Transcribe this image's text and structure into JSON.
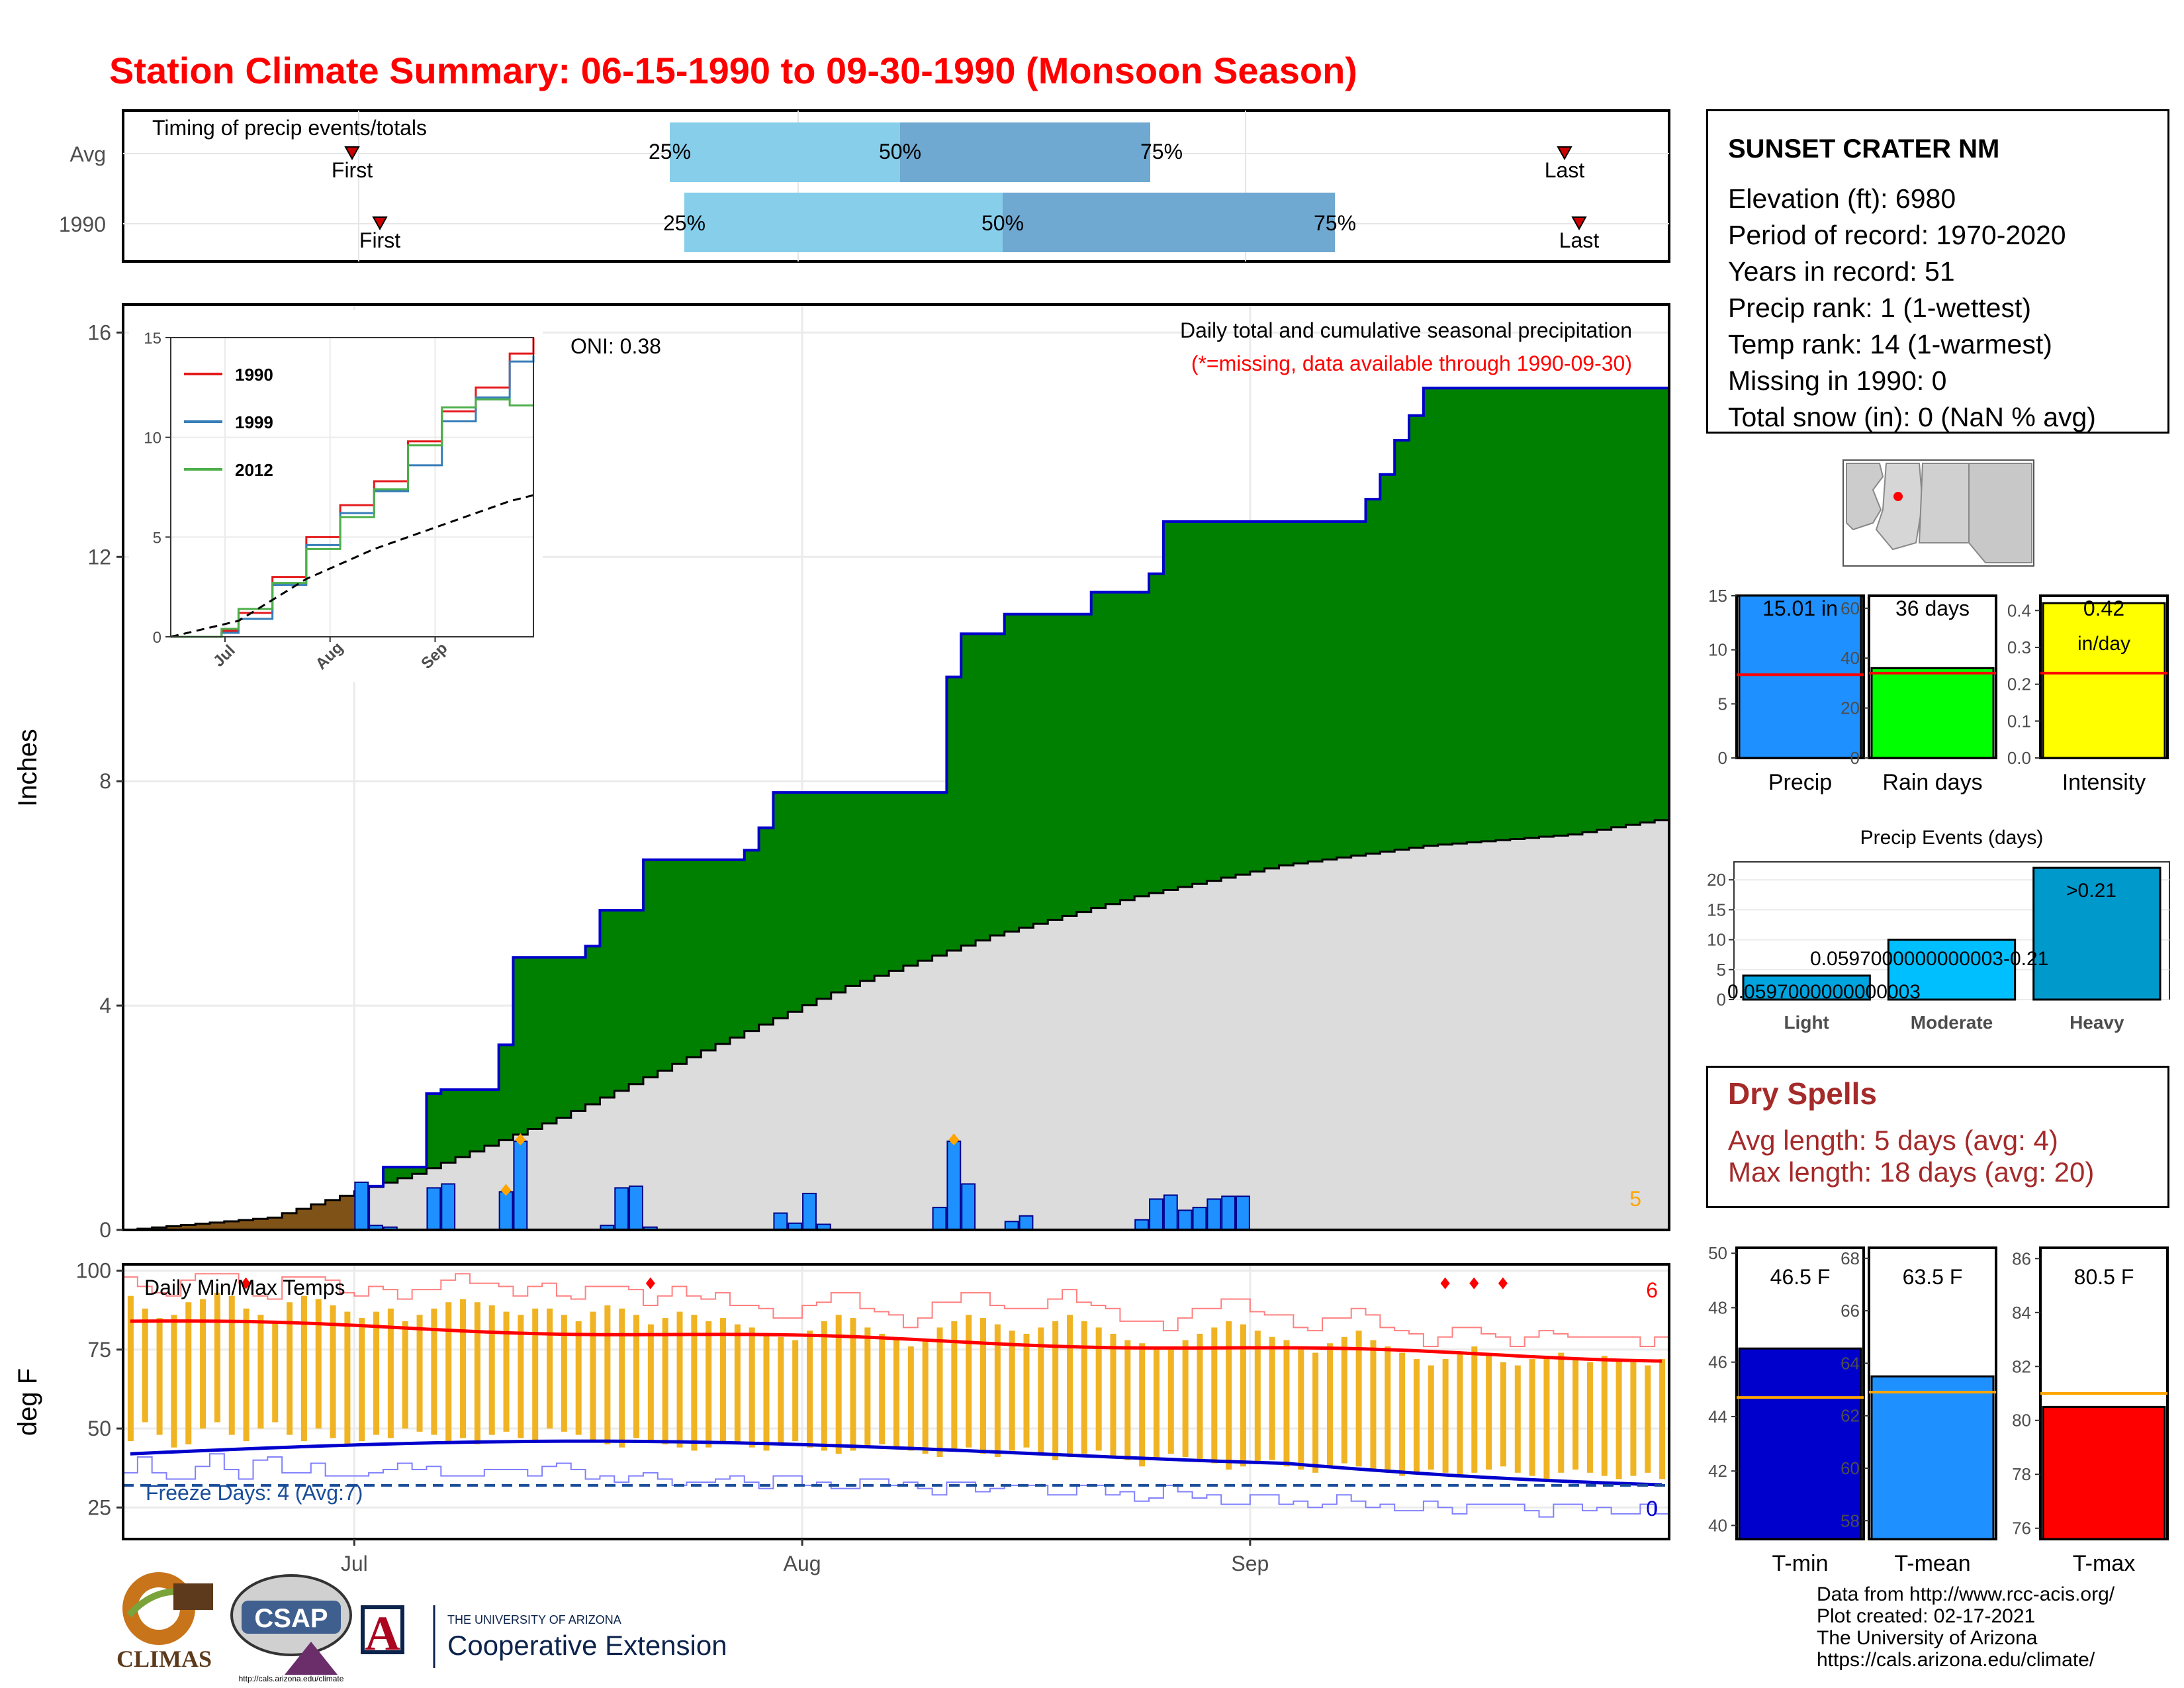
{
  "title": "Station Climate Summary: 06-15-1990 to 09-30-1990 (Monsoon Season)",
  "colors": {
    "title": "#ff0000",
    "cumulative_fill": "#008000",
    "normal_fill": "#dcdcdc",
    "daily_bar": "#1e90ff",
    "outline": "#0000cd",
    "tmax": "#ff0000",
    "tmin": "#0000cd",
    "temp_bar": "#f0b323",
    "precip_bar": "#1e90ff",
    "raindays_bar": "#00ff00",
    "intensity_bar": "#ffff00",
    "tmean_bar": "#1e90ff",
    "events_bar": "#0099cc",
    "dry_spells": "#a52a2a"
  },
  "timing": {
    "title": "Timing of precip events/totals",
    "rows": [
      "Avg",
      "1990"
    ],
    "markers": {
      "first": "First",
      "last": "Last",
      "p25": "25%",
      "p50": "50%",
      "p75": "75%"
    }
  },
  "station": {
    "name": "SUNSET CRATER NM",
    "lines": [
      "Elevation (ft): 6980",
      "Period of record: 1970-2020",
      "Years in record: 51",
      "Precip rank: 1 (1-wettest)",
      "Temp rank: 14 (1-warmest)",
      "Missing in 1990: 0",
      "Total snow (in): 0 (NaN % avg)"
    ]
  },
  "precip_panel": {
    "oni": "ONI: 0.38",
    "note1": "Daily total and cumulative seasonal precipitation",
    "note2": "(*=missing, data available through 1990-09-30)",
    "ylabel": "Inches",
    "yticks": [
      "0",
      "4",
      "8",
      "12",
      "16"
    ],
    "count_label": "5"
  },
  "temp_panel": {
    "title": "Daily Min/Max Temps",
    "ylabel": "deg F",
    "yticks": [
      "25",
      "50",
      "75",
      "100"
    ],
    "freeze": "Freeze Days: 4 (Avg:7)",
    "max_count": "6",
    "min_count": "0"
  },
  "xticks": [
    "Jul",
    "Aug",
    "Sep"
  ],
  "inset": {
    "yticks": [
      "0",
      "5",
      "10",
      "15"
    ],
    "xticks": [
      "Jul",
      "Aug",
      "Sep"
    ],
    "legend": [
      "1990",
      "1999",
      "2012"
    ]
  },
  "bars": {
    "precip": {
      "label": "Precip",
      "value_label": "15.01 in",
      "yticks": [
        "0",
        "5",
        "10",
        "15"
      ]
    },
    "raindays": {
      "label": "Rain days",
      "value_label": "36 days",
      "yticks": [
        "0",
        "20",
        "40",
        "60"
      ]
    },
    "intensity": {
      "label": "Intensity",
      "value_label": "0.42",
      "value_unit": "in/day",
      "yticks": [
        "0.0",
        "0.1",
        "0.2",
        "0.3",
        "0.4"
      ]
    },
    "tmin": {
      "label": "T-min",
      "value_label": "46.5 F",
      "yticks": [
        "40",
        "42",
        "44",
        "46",
        "48",
        "50"
      ]
    },
    "tmean": {
      "label": "T-mean",
      "value_label": "63.5 F",
      "yticks": [
        "58",
        "60",
        "62",
        "64",
        "66",
        "68"
      ]
    },
    "tmax": {
      "label": "T-max",
      "value_label": "80.5 F",
      "yticks": [
        "76",
        "78",
        "80",
        "82",
        "84",
        "86"
      ]
    }
  },
  "events": {
    "title": "Precip Events (days)",
    "yticks": [
      "0",
      "5",
      "10",
      "15",
      "20"
    ],
    "categories": [
      "Light",
      "Moderate",
      "Heavy"
    ],
    "labels": [
      "0.0597000000000003",
      "0.0597000000000003-0.21",
      ">0.21"
    ]
  },
  "dry_spells": {
    "title": "Dry Spells",
    "avg": "Avg length: 5 days (avg: 4)",
    "max": "Max length: 18 days (avg: 20)"
  },
  "credits": [
    "Data from http://www.rcc-acis.org/",
    "Plot created: 02-17-2021",
    "The University of Arizona",
    "https://cals.arizona.edu/climate/"
  ],
  "logos": {
    "climas": "CLIMAS",
    "csap": "CSAP",
    "csap_url": "http://cals.arizona.edu/climate",
    "ua_line1": "THE UNIVERSITY OF ARIZONA",
    "ua_line2": "Cooperative Extension"
  },
  "chart_data": [
    {
      "type": "area",
      "title": "Daily total and cumulative seasonal precipitation",
      "ylabel": "Inches",
      "ylim": [
        0,
        16.5
      ],
      "x_start": "1990-06-15",
      "x_end": "1990-09-30",
      "series": [
        {
          "name": "cumulative",
          "x": [
            17,
            18,
            20,
            21,
            22,
            25,
            26,
            27,
            31,
            32,
            33,
            36,
            37,
            38,
            43,
            44,
            45,
            48,
            56,
            57,
            58,
            61,
            67,
            68,
            70,
            71,
            72,
            86,
            87,
            88,
            89,
            90,
            94,
            96,
            97,
            102,
            103,
            104,
            105,
            106,
            107
          ],
          "y": [
            0.78,
            1.12,
            1.12,
            2.43,
            2.5,
            2.5,
            3.3,
            4.86,
            4.86,
            5.06,
            5.7,
            6.6,
            6.6,
            6.6,
            6.77,
            7.17,
            7.8,
            7.8,
            7.8,
            9.86,
            10.63,
            10.98,
            11.37,
            11.37,
            11.37,
            11.7,
            12.63,
            13.03,
            13.47,
            14.08,
            14.52,
            15.01,
            15.01,
            15.01,
            15.01,
            15.01,
            15.01,
            15.01,
            15.01,
            15.01,
            15.01
          ]
        },
        {
          "name": "daily",
          "x": [
            16,
            17,
            18,
            21,
            22,
            26,
            27,
            33,
            34,
            35,
            36,
            45,
            46,
            47,
            48,
            56,
            57,
            58,
            61,
            62,
            70,
            71,
            72,
            73,
            74,
            75,
            76,
            77
          ],
          "y": [
            0.85,
            0.08,
            0.05,
            0.75,
            0.82,
            0.68,
            1.58,
            0.08,
            0.75,
            0.78,
            0.05,
            0.3,
            0.12,
            0.65,
            0.1,
            0.4,
            1.58,
            0.82,
            0.15,
            0.25,
            0.18,
            0.55,
            0.62,
            0.35,
            0.4,
            0.55,
            0.6,
            0.6
          ]
        },
        {
          "name": "normal",
          "x": [
            0,
            10,
            20,
            30,
            40,
            50,
            60,
            70,
            80,
            90,
            100,
            107
          ],
          "y": [
            0,
            0.22,
            1.0,
            2.0,
            3.2,
            4.35,
            5.25,
            5.95,
            6.5,
            6.85,
            7.05,
            7.35
          ]
        }
      ]
    },
    {
      "type": "line",
      "title": "",
      "ylim": [
        0,
        15
      ],
      "series": [
        {
          "name": "1990",
          "x": [
            0,
            15,
            20,
            30,
            40,
            50,
            60,
            70,
            80,
            90,
            100,
            107
          ],
          "y": [
            0,
            0.3,
            1.2,
            3.0,
            5.0,
            6.6,
            7.8,
            9.8,
            11.3,
            12.5,
            14.2,
            15.0
          ]
        },
        {
          "name": "1999",
          "x": [
            0,
            15,
            20,
            30,
            40,
            50,
            60,
            70,
            80,
            90,
            100,
            107
          ],
          "y": [
            0,
            0.2,
            0.9,
            2.6,
            4.6,
            6.2,
            7.3,
            8.6,
            10.8,
            12.0,
            13.8,
            14.1
          ]
        },
        {
          "name": "2012",
          "x": [
            0,
            15,
            20,
            30,
            40,
            50,
            60,
            70,
            80,
            90,
            100,
            107
          ],
          "y": [
            0,
            0.4,
            1.4,
            2.7,
            4.4,
            6.0,
            7.4,
            9.6,
            11.5,
            11.9,
            11.6,
            11.6
          ]
        },
        {
          "name": "",
          "x": [
            0,
            20,
            40,
            60,
            80,
            100,
            107
          ],
          "y": [
            0,
            0.8,
            2.9,
            4.4,
            5.6,
            6.8,
            7.1
          ]
        }
      ]
    },
    {
      "type": "bar",
      "title": "Daily Min/Max Temps",
      "ylabel": "deg F",
      "ylim": [
        15,
        102
      ],
      "series": [
        {
          "name": "tmax",
          "values": [
            92,
            88,
            85,
            86,
            90,
            91,
            93,
            92,
            88,
            86,
            84,
            90,
            92,
            91,
            89,
            87,
            85,
            87,
            88,
            84,
            86,
            88,
            90,
            91,
            90,
            89,
            87,
            86,
            88,
            88,
            86,
            84,
            87,
            89,
            88,
            86,
            83,
            85,
            87,
            86,
            84,
            85,
            83,
            82,
            80,
            79,
            78,
            81,
            84,
            86,
            85,
            82,
            80,
            78,
            76,
            78,
            82,
            84,
            86,
            85,
            83,
            81,
            80,
            82,
            84,
            86,
            84,
            82,
            80,
            78,
            77,
            76,
            75,
            78,
            80,
            82,
            84,
            83,
            81,
            79,
            78,
            76,
            74,
            77,
            79,
            81,
            78,
            76,
            74,
            72,
            70,
            72,
            74,
            76,
            73,
            71,
            70,
            72,
            73,
            74,
            72,
            71,
            73,
            72,
            71,
            70,
            72
          ]
        },
        {
          "name": "tmin",
          "values": [
            46,
            52,
            48,
            44,
            45,
            50,
            52,
            48,
            46,
            50,
            52,
            48,
            46,
            50,
            47,
            45,
            46,
            48,
            47,
            50,
            49,
            48,
            46,
            47,
            45,
            48,
            49,
            47,
            46,
            50,
            49,
            48,
            46,
            45,
            44,
            47,
            46,
            45,
            44,
            43,
            44,
            46,
            45,
            44,
            43,
            45,
            46,
            44,
            43,
            42,
            43,
            44,
            45,
            44,
            43,
            42,
            41,
            43,
            44,
            42,
            41,
            43,
            44,
            42,
            40,
            41,
            42,
            43,
            41,
            40,
            38,
            40,
            42,
            41,
            40,
            39,
            37,
            38,
            39,
            40,
            38,
            37,
            36,
            38,
            39,
            38,
            37,
            36,
            35,
            36,
            37,
            36,
            35,
            36,
            37,
            38,
            36,
            35,
            34,
            36,
            37,
            36,
            35,
            34,
            35,
            36,
            34
          ]
        }
      ]
    },
    {
      "type": "bar",
      "title": "Precip Events (days)",
      "categories": [
        "Light",
        "Moderate",
        "Heavy"
      ],
      "values": [
        4,
        10,
        22
      ],
      "ylim": [
        0,
        23
      ]
    },
    {
      "type": "bar",
      "title": "",
      "categories": [
        "Precip",
        "Rain days",
        "Intensity",
        "T-min",
        "T-mean",
        "T-max"
      ],
      "values": [
        15.01,
        36,
        0.42,
        46.5,
        63.5,
        80.5
      ],
      "averages": [
        7.7,
        34,
        0.23,
        44.7,
        62.9,
        81.0
      ]
    }
  ]
}
